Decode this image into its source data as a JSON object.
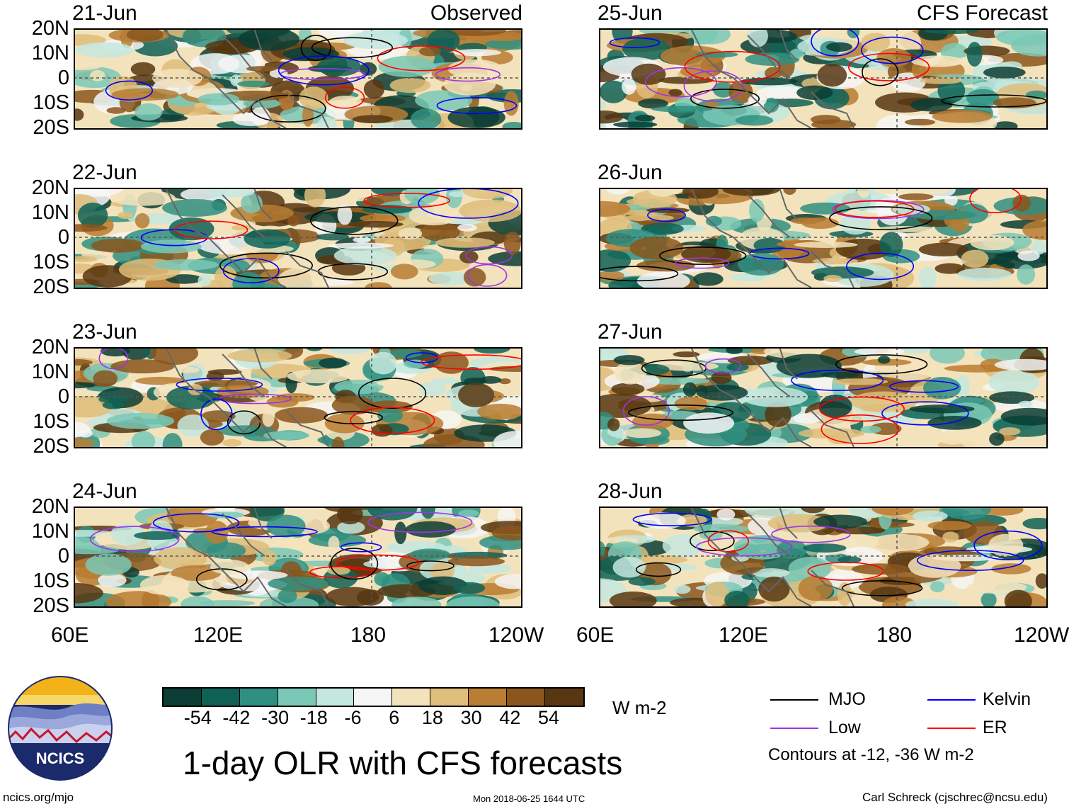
{
  "figure": {
    "title": "1-day OLR with CFS forecasts",
    "observed_label": "Observed",
    "forecast_label": "CFS Forecast",
    "units": "W m-2",
    "footer_left": "ncics.org/mjo",
    "footer_center": "Mon 2018-06-25 1644 UTC",
    "footer_right": "Carl Schreck (cjschrec@ncsu.edu)",
    "logo_text": "NCICS"
  },
  "panels": {
    "observed": [
      "21-Jun",
      "22-Jun",
      "23-Jun",
      "24-Jun"
    ],
    "forecast": [
      "25-Jun",
      "26-Jun",
      "27-Jun",
      "28-Jun"
    ]
  },
  "axes": {
    "lat_labels": [
      "20N",
      "10N",
      "0",
      "10S",
      "20S"
    ],
    "lon_labels": [
      "60E",
      "120E",
      "180",
      "120W"
    ]
  },
  "colorbar": {
    "labels": [
      "-54",
      "-42",
      "-30",
      "-18",
      "-6",
      "6",
      "18",
      "30",
      "42",
      "54"
    ],
    "colors": [
      "#0b3d34",
      "#0f6156",
      "#2f8f80",
      "#7ac8b6",
      "#c4e8df",
      "#f6f6f6",
      "#f3e3bd",
      "#dfbd7a",
      "#b97d33",
      "#8a561c",
      "#573611"
    ]
  },
  "legend": {
    "items": [
      {
        "label": "MJO",
        "color": "#000000"
      },
      {
        "label": "Kelvin",
        "color": "#0000ff"
      },
      {
        "label": "Low",
        "color": "#a033e6"
      },
      {
        "label": "ER",
        "color": "#ff0000"
      }
    ],
    "note": "Contours at -12, -36 W m-2"
  }
}
